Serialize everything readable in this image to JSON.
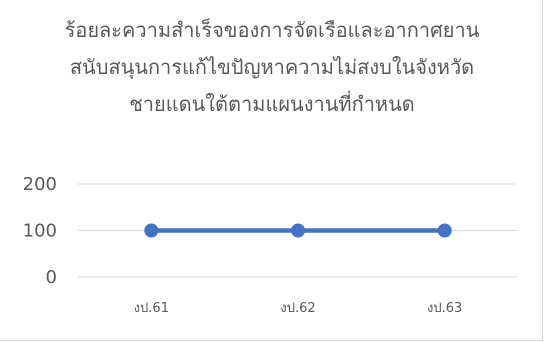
{
  "chart_data": {
    "type": "line",
    "title_lines": [
      "ร้อยละความสำเร็จของการจัดเรือและอากาศยาน",
      "สนับสนุนการแก้ไขปัญหาความไม่สงบในจังหวัด",
      "ชายแดนใต้ตามแผนงานที่กำหนด"
    ],
    "categories": [
      "งป.61",
      "งป.62",
      "งป.63"
    ],
    "series": [
      {
        "values": [
          100,
          100,
          100
        ]
      }
    ],
    "yticks": [
      0,
      100,
      200
    ],
    "ylim": [
      0,
      200
    ],
    "grid": true,
    "legend": "none",
    "line_color": "#4472C4",
    "grid_color": "#d9d9d9"
  }
}
